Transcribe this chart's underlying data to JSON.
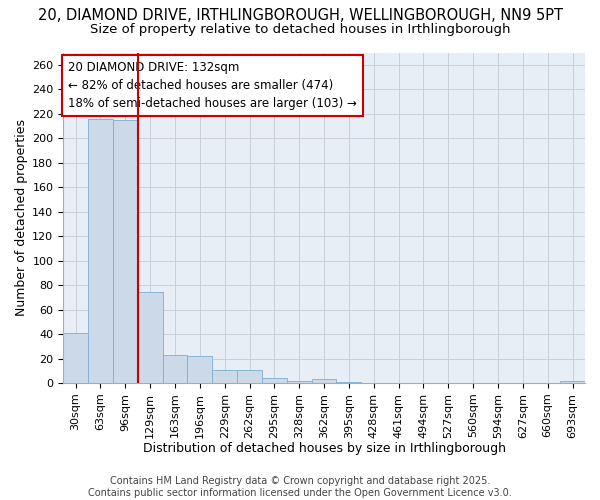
{
  "title_line1": "20, DIAMOND DRIVE, IRTHLINGBOROUGH, WELLINGBOROUGH, NN9 5PT",
  "title_line2": "Size of property relative to detached houses in Irthlingborough",
  "xlabel": "Distribution of detached houses by size in Irthlingborough",
  "ylabel": "Number of detached properties",
  "categories": [
    "30sqm",
    "63sqm",
    "96sqm",
    "129sqm",
    "163sqm",
    "196sqm",
    "229sqm",
    "262sqm",
    "295sqm",
    "328sqm",
    "362sqm",
    "395sqm",
    "428sqm",
    "461sqm",
    "494sqm",
    "527sqm",
    "560sqm",
    "594sqm",
    "627sqm",
    "660sqm",
    "693sqm"
  ],
  "values": [
    41,
    216,
    215,
    74,
    23,
    22,
    11,
    11,
    4,
    2,
    3,
    1,
    0,
    0,
    0,
    0,
    0,
    0,
    0,
    0,
    2
  ],
  "bar_color": "#ccd9e8",
  "bar_edge_color": "#7bafd4",
  "vline_color": "#cc0000",
  "vline_index": 3,
  "annotation_line1": "20 DIAMOND DRIVE: 132sqm",
  "annotation_line2": "← 82% of detached houses are smaller (474)",
  "annotation_line3": "18% of semi-detached houses are larger (103) →",
  "annotation_box_color": "#cc0000",
  "annotation_box_bg": "#ffffff",
  "ylim": [
    0,
    270
  ],
  "yticks": [
    0,
    20,
    40,
    60,
    80,
    100,
    120,
    140,
    160,
    180,
    200,
    220,
    240,
    260
  ],
  "grid_color": "#c8d0dc",
  "bg_color": "#e8eef5",
  "footer_text": "Contains HM Land Registry data © Crown copyright and database right 2025.\nContains public sector information licensed under the Open Government Licence v3.0.",
  "title_fontsize": 10.5,
  "subtitle_fontsize": 9.5,
  "axis_label_fontsize": 9,
  "tick_fontsize": 8,
  "annotation_fontsize": 8.5,
  "footer_fontsize": 7
}
